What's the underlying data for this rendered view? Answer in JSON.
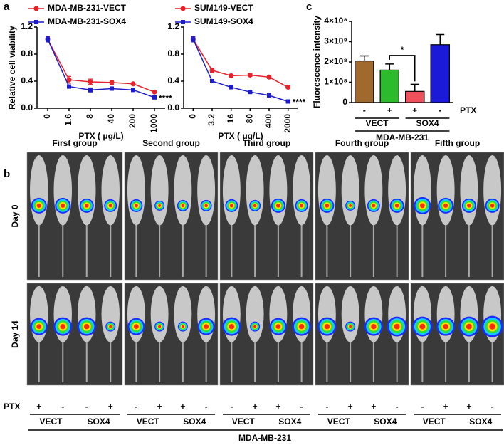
{
  "panel_labels": [
    "a",
    "b",
    "c"
  ],
  "chart_data": [
    {
      "type": "line",
      "ylabel": "Relative cell viability",
      "xlabel": "PTX ( μg/L)",
      "categories": [
        "0",
        "1.6",
        "8",
        "40",
        "200",
        "1000"
      ],
      "series": [
        {
          "name": "MDA-MB-231-VECT",
          "color": "#e8202a",
          "marker": "circle",
          "values": [
            1.02,
            0.42,
            0.39,
            0.38,
            0.36,
            0.24
          ],
          "errors": [
            0.04,
            0.05,
            0.04,
            0.03,
            0.01,
            0.01
          ]
        },
        {
          "name": "MDA-MB-231-SOX4",
          "color": "#1c1cc8",
          "marker": "square",
          "values": [
            1.02,
            0.32,
            0.27,
            0.29,
            0.27,
            0.16
          ],
          "errors": [
            0.04,
            0.02,
            0.03,
            0.01,
            0.01,
            0.01
          ]
        }
      ],
      "ylim": [
        0,
        1.2
      ],
      "yticks": [
        {
          "value": 0,
          "label": "0.0"
        },
        0.4,
        0.8,
        1.2
      ],
      "annotation": "****"
    },
    {
      "type": "line",
      "xlabel": "PTX ( μg/L)",
      "categories": [
        "0",
        "3.2",
        "16",
        "80",
        "400",
        "2000"
      ],
      "series": [
        {
          "name": "SUM149-VECT",
          "color": "#e8202a",
          "marker": "circle",
          "values": [
            1.02,
            0.56,
            0.48,
            0.49,
            0.46,
            0.31
          ],
          "errors": [
            0.04,
            0.03,
            0.02,
            0.02,
            0.02,
            0.02
          ]
        },
        {
          "name": "SUM149-SOX4",
          "color": "#1c1cc8",
          "marker": "square",
          "values": [
            1.02,
            0.4,
            0.31,
            0.24,
            0.19,
            0.1
          ],
          "errors": [
            0.04,
            0.01,
            0.01,
            0.01,
            0.01,
            0.01
          ]
        }
      ],
      "ylim": [
        0,
        1.2
      ],
      "yticks": [
        {
          "value": 0,
          "label": "0.0"
        },
        0.4,
        0.8,
        1.2
      ],
      "annotation": "****"
    },
    {
      "type": "bar",
      "ylabel": "Fluorescence intensity",
      "categories": [
        "-",
        "+",
        "+",
        "-"
      ],
      "x_row_label": "PTX",
      "values": [
        205000000,
        160000000,
        55000000,
        285000000
      ],
      "errors": [
        25000000,
        30000000,
        35000000,
        50000000
      ],
      "colors": [
        "#a0692e",
        "#2dbb2d",
        "#f0505a",
        "#1a1ad8"
      ],
      "ylim": [
        0,
        400000000
      ],
      "yticks": [
        0,
        {
          "value": 100000000,
          "label": "1×10⁸"
        },
        {
          "value": 200000000,
          "label": "2×10⁸"
        },
        {
          "value": 300000000,
          "label": "3×10⁸"
        },
        {
          "value": 400000000,
          "label": "4×10⁸"
        }
      ],
      "group_labels": [
        "VECT",
        "SOX4"
      ],
      "group_label": "MDA-MB-231",
      "significance": "*"
    }
  ],
  "imaging": {
    "rows": [
      "Day 0",
      "Day 14"
    ],
    "treatment_label": "PTX",
    "cell_line": "MDA-MB-231",
    "groups": [
      {
        "title": "First group",
        "ptx": [
          "+",
          "-",
          "-",
          "+"
        ],
        "cell_lines": [
          "VECT",
          "SOX4"
        ]
      },
      {
        "title": "Second group",
        "ptx": [
          "-",
          "+",
          "+",
          "-"
        ],
        "cell_lines": [
          "VECT",
          "SOX4"
        ]
      },
      {
        "title": "Third group",
        "ptx": [
          "-",
          "+",
          "+",
          "-"
        ],
        "cell_lines": [
          "VECT",
          "SOX4"
        ]
      },
      {
        "title": "Fourth group",
        "ptx": [
          "-",
          "+",
          "+",
          "-"
        ],
        "cell_lines": [
          "VECT",
          "SOX4"
        ]
      },
      {
        "title": "Fifth group",
        "ptx": [
          "-",
          "+",
          "+",
          "-"
        ],
        "cell_lines": [
          "VECT",
          "SOX4"
        ]
      }
    ]
  }
}
